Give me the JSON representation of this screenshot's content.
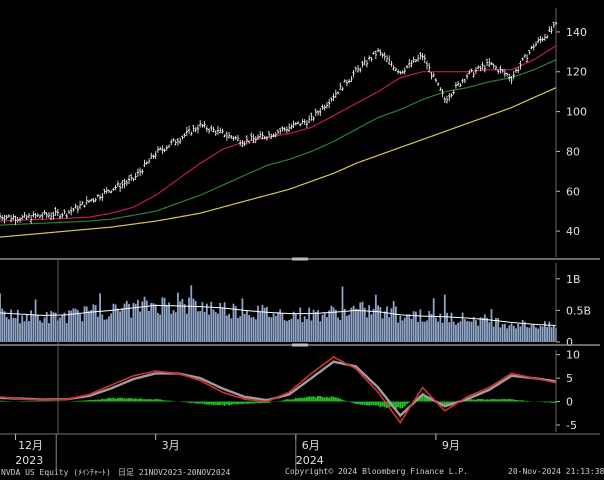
{
  "footer": {
    "security": "NVDA US Equity (ﾒｲﾝﾁｬｰﾄ)",
    "period": "日足 21NOV2023-20NOV2024",
    "copyright": "Copyright© 2024 Bloomberg Finance L.P.",
    "timestamp": "20-Nov-2024 21:13:38"
  },
  "colors": {
    "background": "#000000",
    "price_bars": "#ffffff",
    "ma_short": "#c2185b",
    "ma_mid": "#2e7d32",
    "ma_long": "#d4c84a",
    "volume_bars": "#8fa6c8",
    "volume_avg": "#ffffff",
    "macd_line": "#d32f2f",
    "macd_signal": "#9e9e9e",
    "macd_hist": "#22c422",
    "separator": "#8c8c8c"
  },
  "chart_data": [
    {
      "type": "line",
      "panel": "price",
      "x_ticks": [
        "12月",
        "3月",
        "6月",
        "9月"
      ],
      "x_years": [
        "2023",
        "2024"
      ],
      "y_ticks": [
        40,
        60,
        80,
        100,
        120,
        140
      ],
      "ylim": [
        27,
        152
      ],
      "x": [
        0,
        10,
        20,
        30,
        40,
        50,
        60,
        70,
        80,
        90,
        100,
        110,
        120,
        130,
        140,
        150,
        160,
        170,
        180,
        190,
        200,
        210,
        220,
        230,
        240,
        250
      ],
      "series": [
        {
          "values": [
            47.5,
            46.5,
            48,
            49,
            55,
            61,
            66,
            79,
            86,
            93,
            89,
            85,
            88,
            92,
            96,
            108,
            120,
            130,
            120,
            128,
            106,
            118,
            124,
            117,
            133,
            143
          ]
        },
        {
          "values": [
            45,
            45.5,
            46,
            46.5,
            47,
            49,
            52,
            58,
            66,
            74,
            81,
            85,
            87,
            89,
            92,
            98,
            104,
            110,
            117,
            120,
            120,
            120,
            121,
            121,
            126,
            133
          ]
        },
        {
          "values": [
            43,
            43.5,
            44,
            44.5,
            45,
            46,
            48,
            50,
            54,
            58,
            63,
            68,
            73,
            76,
            80,
            85,
            91,
            97,
            101,
            106,
            110,
            112,
            115,
            117,
            121,
            126
          ]
        },
        {
          "values": [
            37,
            38,
            39,
            40,
            41,
            42,
            43.5,
            45,
            47,
            49,
            52,
            55,
            58,
            61,
            65,
            69,
            74,
            78,
            82,
            86,
            90,
            94,
            98,
            102,
            107,
            112
          ]
        }
      ]
    },
    {
      "type": "bar",
      "panel": "volume",
      "y_ticks": [
        "1B",
        "0.5B",
        "0"
      ],
      "ylim": [
        0,
        1.25
      ],
      "x": [
        0,
        10,
        20,
        30,
        40,
        50,
        60,
        70,
        80,
        90,
        100,
        110,
        120,
        130,
        140,
        150,
        160,
        170,
        180,
        190,
        200,
        210,
        220,
        230,
        240,
        250
      ],
      "values": [
        0.45,
        0.42,
        0.4,
        0.42,
        0.48,
        0.5,
        0.55,
        0.62,
        0.6,
        0.58,
        0.55,
        0.5,
        0.48,
        0.45,
        0.45,
        0.48,
        0.52,
        0.5,
        0.42,
        0.4,
        0.4,
        0.38,
        0.35,
        0.3,
        0.28,
        0.25
      ],
      "average": [
        0.46,
        0.44,
        0.42,
        0.43,
        0.47,
        0.5,
        0.54,
        0.58,
        0.57,
        0.56,
        0.54,
        0.5,
        0.47,
        0.45,
        0.45,
        0.47,
        0.5,
        0.48,
        0.43,
        0.41,
        0.4,
        0.38,
        0.35,
        0.31,
        0.28,
        0.26
      ]
    },
    {
      "type": "line",
      "panel": "macd",
      "y_ticks": [
        10,
        5,
        0,
        -5
      ],
      "ylim": [
        -6.5,
        11
      ],
      "x": [
        0,
        10,
        20,
        30,
        40,
        50,
        60,
        70,
        80,
        90,
        100,
        110,
        120,
        130,
        140,
        150,
        160,
        170,
        180,
        190,
        200,
        210,
        220,
        230,
        240,
        250
      ],
      "series": [
        {
          "values": [
            1,
            0.5,
            0.3,
            0.5,
            1.5,
            3.5,
            5.5,
            6.5,
            6,
            4.5,
            2,
            0.5,
            0,
            2,
            6,
            9.5,
            7,
            2,
            -4.5,
            3,
            -2,
            1,
            3,
            6,
            5,
            4
          ]
        },
        {
          "values": [
            0.8,
            0.6,
            0.4,
            0.5,
            1.2,
            2.8,
            4.8,
            6,
            6,
            5,
            2.8,
            1,
            0.3,
            1.5,
            5,
            8.5,
            7.5,
            3,
            -3,
            1.5,
            -1,
            0.5,
            2.5,
            5.5,
            5,
            4.3
          ]
        }
      ],
      "histogram": [
        0.2,
        -0.1,
        -0.1,
        0,
        0.3,
        0.7,
        0.7,
        0.5,
        0,
        -0.5,
        -0.8,
        -0.5,
        -0.3,
        0.5,
        1,
        1,
        -0.5,
        -1,
        -1.5,
        1.5,
        -1,
        0.5,
        0.5,
        0.5,
        0,
        -0.3
      ]
    }
  ]
}
